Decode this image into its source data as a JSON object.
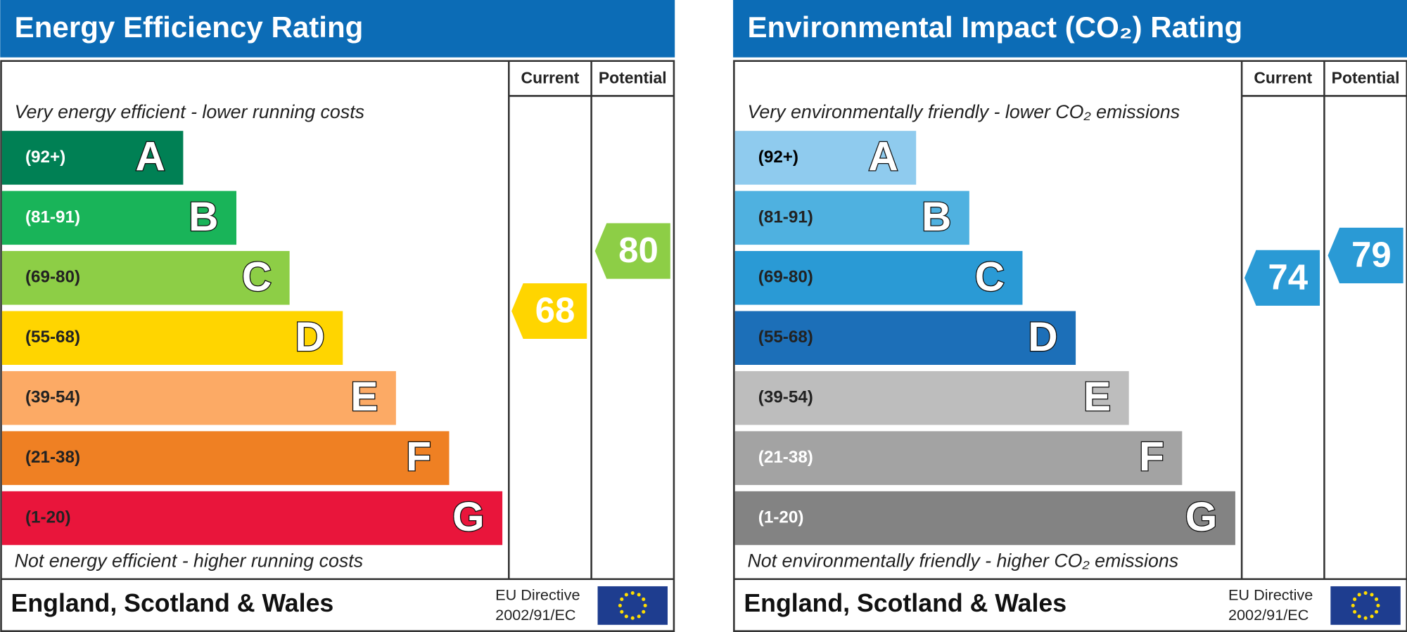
{
  "panels": [
    {
      "title": "Energy Efficiency Rating",
      "columns": [
        "Current",
        "Potential"
      ],
      "top_note": "Very energy efficient - lower running costs",
      "bottom_note": "Not energy efficient - higher running costs",
      "bands": [
        {
          "range": "(92+)",
          "letter": "A",
          "color": "#008054",
          "text_color": "#ffffff"
        },
        {
          "range": "(81-91)",
          "letter": "B",
          "color": "#19b459",
          "text_color": "#ffffff"
        },
        {
          "range": "(69-80)",
          "letter": "C",
          "color": "#8dce46",
          "text_color": "#222222"
        },
        {
          "range": "(55-68)",
          "letter": "D",
          "color": "#ffd500",
          "text_color": "#222222"
        },
        {
          "range": "(39-54)",
          "letter": "E",
          "color": "#fcaa65",
          "text_color": "#222222"
        },
        {
          "range": "(21-38)",
          "letter": "F",
          "color": "#ef8023",
          "text_color": "#222222"
        },
        {
          "range": "(1-20)",
          "letter": "G",
          "color": "#e9153b",
          "text_color": "#222222"
        }
      ],
      "current": 68,
      "potential": 80,
      "footer": "England, Scotland & Wales",
      "directive": [
        "EU Directive",
        "2002/91/EC"
      ]
    },
    {
      "title": "Environmental Impact (CO₂) Rating",
      "columns": [
        "Current",
        "Potential"
      ],
      "top_note": "Very environmentally friendly - lower CO₂ emissions",
      "bottom_note": "Not environmentally friendly - higher CO₂ emissions",
      "bands": [
        {
          "range": "(92+)",
          "letter": "A",
          "color": "#8fcbee",
          "text_color": "#000000"
        },
        {
          "range": "(81-91)",
          "letter": "B",
          "color": "#4fb1e0",
          "text_color": "#222222"
        },
        {
          "range": "(69-80)",
          "letter": "C",
          "color": "#2a9ad5",
          "text_color": "#222222"
        },
        {
          "range": "(55-68)",
          "letter": "D",
          "color": "#1c6fb8",
          "text_color": "#222222"
        },
        {
          "range": "(39-54)",
          "letter": "E",
          "color": "#bdbdbd",
          "text_color": "#222222"
        },
        {
          "range": "(21-38)",
          "letter": "F",
          "color": "#a3a3a3",
          "text_color": "#ffffff"
        },
        {
          "range": "(1-20)",
          "letter": "G",
          "color": "#838383",
          "text_color": "#ffffff"
        }
      ],
      "current": 74,
      "potential": 79,
      "footer": "England, Scotland & Wales",
      "directive": [
        "EU Directive",
        "2002/91/EC"
      ]
    }
  ]
}
